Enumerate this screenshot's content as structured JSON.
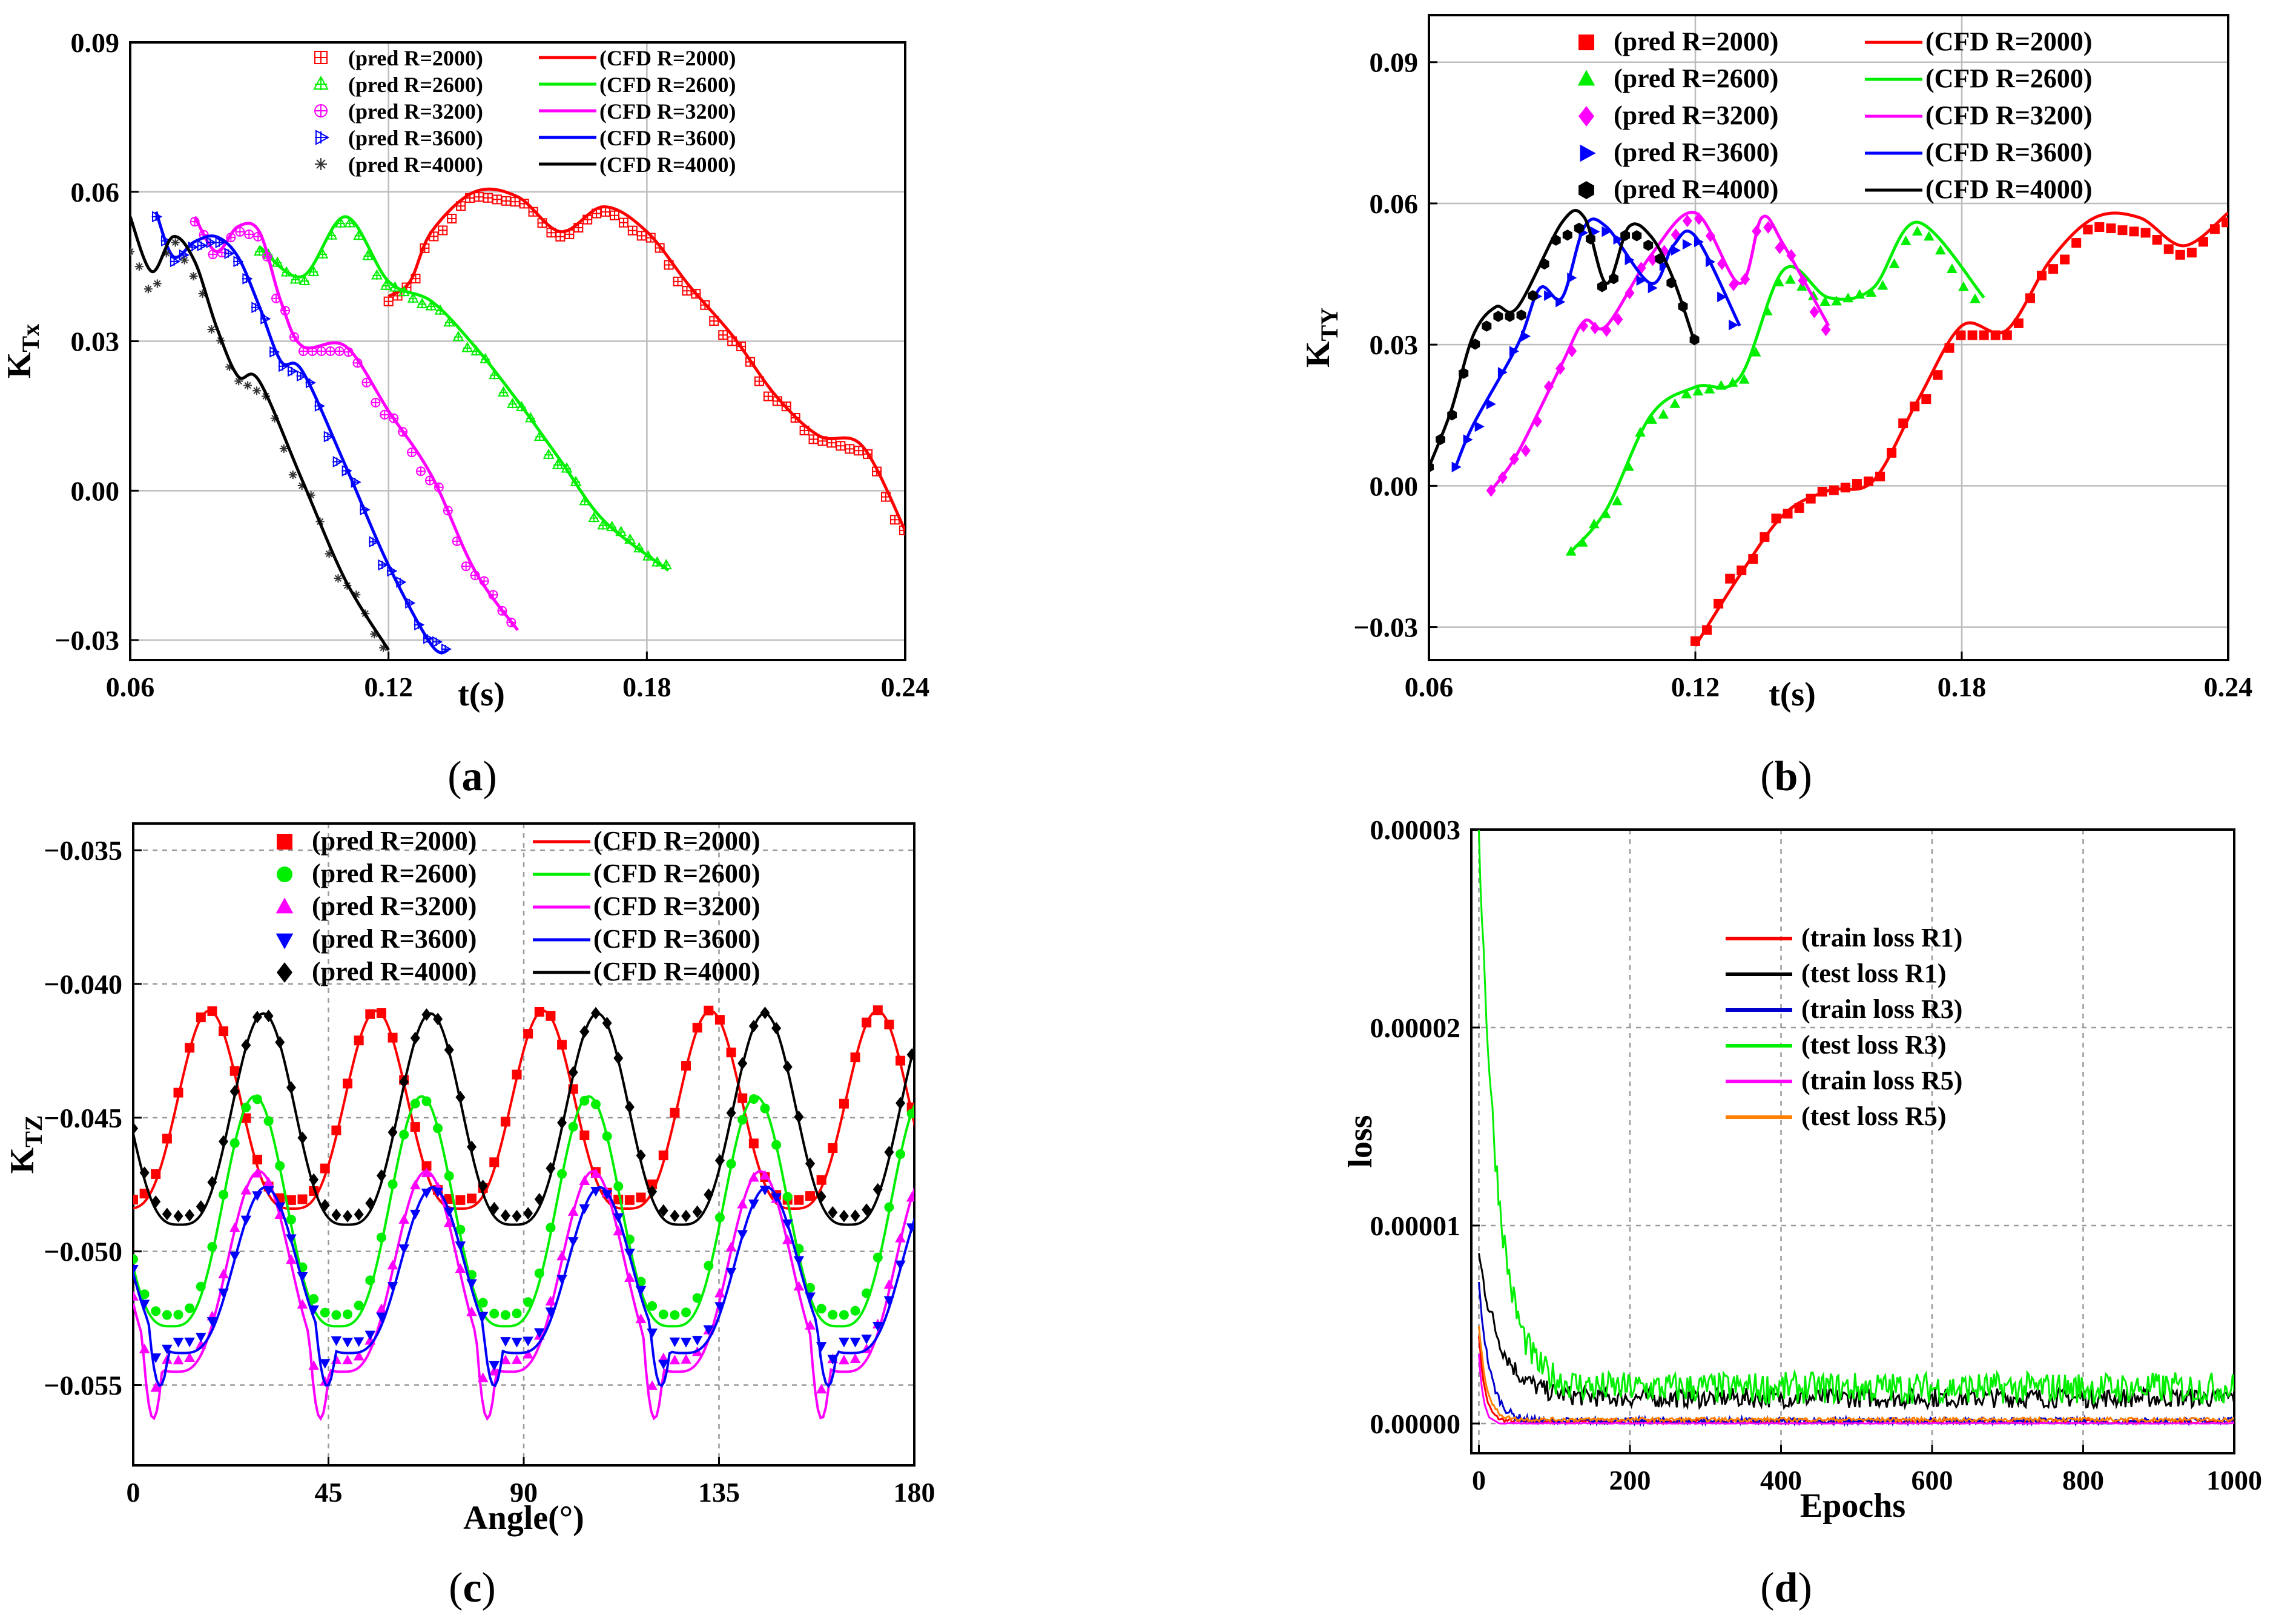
{
  "figure_panels": [
    "a",
    "b",
    "c",
    "d"
  ],
  "chart_data": [
    {
      "panel": "a",
      "type": "line",
      "xlabel": "t(s)",
      "ylabel": "K",
      "ylabel_sub": "Tx",
      "xlim": [
        0.06,
        0.24
      ],
      "ylim": [
        -0.034,
        0.09
      ],
      "xticks": [
        "0.06",
        "0.12",
        "0.18",
        "0.24"
      ],
      "yticks": [
        "−0.03",
        "0.00",
        "0.03",
        "0.06",
        "0.09"
      ],
      "xtick_values": [
        0.06,
        0.12,
        0.18,
        0.24
      ],
      "ytick_values": [
        -0.03,
        0.0,
        0.03,
        0.06,
        0.09
      ],
      "grid": true,
      "legend_position": "top-center",
      "series": [
        {
          "name": "(pred R=2000)",
          "kind": "pred",
          "color": "#ff0000",
          "marker": "square-plus",
          "x": [
            0.12,
            0.125,
            0.13,
            0.14,
            0.15,
            0.16,
            0.17,
            0.18,
            0.19,
            0.2,
            0.21,
            0.22,
            0.23,
            0.24
          ],
          "y": [
            0.038,
            0.041,
            0.051,
            0.059,
            0.058,
            0.051,
            0.056,
            0.051,
            0.04,
            0.03,
            0.018,
            0.01,
            0.008,
            -0.008
          ]
        },
        {
          "name": "(CFD  R=2000)",
          "kind": "cfd",
          "color": "#ff0000",
          "x": [
            0.12,
            0.125,
            0.13,
            0.14,
            0.15,
            0.16,
            0.17,
            0.18,
            0.19,
            0.2,
            0.21,
            0.22,
            0.23,
            0.24
          ],
          "y": [
            0.039,
            0.042,
            0.052,
            0.06,
            0.059,
            0.052,
            0.057,
            0.052,
            0.041,
            0.031,
            0.019,
            0.011,
            0.009,
            -0.008
          ]
        },
        {
          "name": "(pred R=2600)",
          "kind": "pred",
          "color": "#00ee00",
          "marker": "triangle-plus",
          "x": [
            0.09,
            0.1,
            0.11,
            0.12,
            0.13,
            0.14,
            0.15,
            0.16,
            0.17,
            0.185
          ],
          "y": [
            0.048,
            0.042,
            0.054,
            0.041,
            0.037,
            0.028,
            0.017,
            0.005,
            -0.007,
            -0.015
          ]
        },
        {
          "name": "(CFD  R=2600)",
          "kind": "cfd",
          "color": "#00ee00",
          "x": [
            0.09,
            0.1,
            0.11,
            0.12,
            0.13,
            0.14,
            0.15,
            0.16,
            0.17,
            0.185
          ],
          "y": [
            0.049,
            0.043,
            0.055,
            0.042,
            0.038,
            0.029,
            0.018,
            0.006,
            -0.006,
            -0.016
          ]
        },
        {
          "name": "(pred R=3200)",
          "kind": "pred",
          "color": "#ff00ff",
          "marker": "circle-plus",
          "x": [
            0.075,
            0.08,
            0.085,
            0.09,
            0.095,
            0.1,
            0.11,
            0.12,
            0.13,
            0.14,
            0.15
          ],
          "y": [
            0.054,
            0.047,
            0.052,
            0.051,
            0.037,
            0.028,
            0.028,
            0.015,
            0.002,
            -0.017,
            -0.027
          ]
        },
        {
          "name": "(CFD  R=3200)",
          "kind": "cfd",
          "color": "#ff00ff",
          "x": [
            0.075,
            0.08,
            0.085,
            0.09,
            0.095,
            0.1,
            0.11,
            0.12,
            0.13,
            0.14,
            0.15
          ],
          "y": [
            0.055,
            0.048,
            0.053,
            0.052,
            0.038,
            0.029,
            0.029,
            0.016,
            0.003,
            -0.016,
            -0.028
          ]
        },
        {
          "name": "(pred R=3600)",
          "kind": "pred",
          "color": "#0000ff",
          "marker": "triangle-right-plus",
          "x": [
            0.066,
            0.07,
            0.075,
            0.08,
            0.085,
            0.09,
            0.095,
            0.1,
            0.11,
            0.12,
            0.13,
            0.134
          ],
          "y": [
            0.055,
            0.046,
            0.049,
            0.05,
            0.046,
            0.036,
            0.025,
            0.023,
            0.004,
            -0.016,
            -0.03,
            -0.032
          ]
        },
        {
          "name": "(CFD  R=3600)",
          "kind": "cfd",
          "color": "#0000ff",
          "x": [
            0.066,
            0.07,
            0.075,
            0.08,
            0.085,
            0.09,
            0.095,
            0.1,
            0.11,
            0.12,
            0.13,
            0.134
          ],
          "y": [
            0.056,
            0.047,
            0.05,
            0.051,
            0.047,
            0.037,
            0.026,
            0.024,
            0.005,
            -0.015,
            -0.031,
            -0.032
          ]
        },
        {
          "name": "(pred R=4000)",
          "kind": "pred",
          "color": "#333333",
          "marker": "star",
          "x": [
            0.06,
            0.065,
            0.07,
            0.075,
            0.08,
            0.085,
            0.09,
            0.1,
            0.11,
            0.12
          ],
          "y": [
            0.048,
            0.04,
            0.05,
            0.043,
            0.031,
            0.022,
            0.02,
            0.001,
            -0.019,
            -0.032
          ]
        },
        {
          "name": "(CFD  R=4000)",
          "kind": "cfd",
          "color": "#000000",
          "x": [
            0.06,
            0.065,
            0.07,
            0.075,
            0.08,
            0.085,
            0.09,
            0.1,
            0.11,
            0.12
          ],
          "y": [
            0.055,
            0.044,
            0.051,
            0.046,
            0.033,
            0.023,
            0.022,
            0.002,
            -0.018,
            -0.032
          ]
        }
      ]
    },
    {
      "panel": "b",
      "type": "line",
      "xlabel": "t(s)",
      "ylabel": "K",
      "ylabel_sub": "TY",
      "xlim": [
        0.06,
        0.24
      ],
      "ylim": [
        -0.037,
        0.1
      ],
      "xticks": [
        "0.06",
        "0.12",
        "0.18",
        "0.24"
      ],
      "yticks": [
        "−0.03",
        "0.00",
        "0.03",
        "0.06",
        "0.09"
      ],
      "xtick_values": [
        0.06,
        0.12,
        0.18,
        0.24
      ],
      "ytick_values": [
        -0.03,
        0.0,
        0.03,
        0.06,
        0.09
      ],
      "grid": true,
      "legend_position": "top-center",
      "series": [
        {
          "name": "(pred R=2000)",
          "kind": "pred",
          "color": "#ff0000",
          "marker": "square",
          "x": [
            0.12,
            0.13,
            0.14,
            0.15,
            0.16,
            0.17,
            0.18,
            0.19,
            0.2,
            0.21,
            0.22,
            0.23,
            0.24
          ],
          "y": [
            -0.033,
            -0.018,
            -0.006,
            -0.001,
            0.001,
            0.017,
            0.032,
            0.032,
            0.046,
            0.055,
            0.054,
            0.049,
            0.056
          ]
        },
        {
          "name": "(CFD  R=2000)",
          "kind": "cfd",
          "color": "#ff0000",
          "x": [
            0.12,
            0.13,
            0.14,
            0.15,
            0.16,
            0.17,
            0.18,
            0.19,
            0.2,
            0.21,
            0.22,
            0.23,
            0.24
          ],
          "y": [
            -0.034,
            -0.019,
            -0.006,
            -0.001,
            0.001,
            0.018,
            0.034,
            0.033,
            0.048,
            0.057,
            0.057,
            0.051,
            0.058
          ]
        },
        {
          "name": "(pred R=2600)",
          "kind": "pred",
          "color": "#00ee00",
          "marker": "triangle",
          "x": [
            0.092,
            0.1,
            0.11,
            0.12,
            0.13,
            0.14,
            0.15,
            0.16,
            0.17,
            0.185
          ],
          "y": [
            -0.014,
            -0.006,
            0.014,
            0.02,
            0.022,
            0.044,
            0.039,
            0.041,
            0.054,
            0.039
          ]
        },
        {
          "name": "(CFD  R=2600)",
          "kind": "cfd",
          "color": "#00ee00",
          "x": [
            0.092,
            0.1,
            0.11,
            0.12,
            0.13,
            0.14,
            0.15,
            0.16,
            0.17,
            0.185
          ],
          "y": [
            -0.014,
            -0.005,
            0.015,
            0.021,
            0.023,
            0.046,
            0.04,
            0.042,
            0.056,
            0.04
          ]
        },
        {
          "name": "(pred R=3200)",
          "kind": "pred",
          "color": "#ff00ff",
          "marker": "diamond",
          "x": [
            0.074,
            0.08,
            0.09,
            0.095,
            0.1,
            0.11,
            0.12,
            0.13,
            0.135,
            0.14,
            0.15
          ],
          "y": [
            -0.001,
            0.006,
            0.025,
            0.034,
            0.033,
            0.048,
            0.057,
            0.042,
            0.056,
            0.05,
            0.033
          ]
        },
        {
          "name": "(CFD  R=3200)",
          "kind": "cfd",
          "color": "#ff00ff",
          "x": [
            0.074,
            0.08,
            0.09,
            0.095,
            0.1,
            0.11,
            0.12,
            0.13,
            0.135,
            0.14,
            0.15
          ],
          "y": [
            -0.001,
            0.007,
            0.026,
            0.035,
            0.034,
            0.049,
            0.058,
            0.043,
            0.057,
            0.051,
            0.034
          ]
        },
        {
          "name": "(pred R=3600)",
          "kind": "pred",
          "color": "#0000ff",
          "marker": "triangle-right",
          "x": [
            0.066,
            0.07,
            0.08,
            0.085,
            0.09,
            0.095,
            0.1,
            0.11,
            0.115,
            0.12,
            0.13
          ],
          "y": [
            0.004,
            0.012,
            0.029,
            0.041,
            0.039,
            0.054,
            0.054,
            0.042,
            0.05,
            0.052,
            0.033
          ]
        },
        {
          "name": "(CFD  R=3600)",
          "kind": "cfd",
          "color": "#0000ff",
          "x": [
            0.066,
            0.07,
            0.08,
            0.085,
            0.09,
            0.095,
            0.1,
            0.11,
            0.115,
            0.12,
            0.13
          ],
          "y": [
            0.004,
            0.013,
            0.03,
            0.042,
            0.04,
            0.055,
            0.055,
            0.043,
            0.051,
            0.053,
            0.034
          ]
        },
        {
          "name": "(pred R=4000)",
          "kind": "pred",
          "color": "#000000",
          "marker": "hexagon",
          "x": [
            0.06,
            0.065,
            0.07,
            0.075,
            0.08,
            0.09,
            0.095,
            0.1,
            0.105,
            0.11,
            0.115,
            0.12
          ],
          "y": [
            0.004,
            0.015,
            0.03,
            0.036,
            0.036,
            0.053,
            0.055,
            0.041,
            0.054,
            0.051,
            0.043,
            0.031
          ]
        },
        {
          "name": "(CFD  R=4000)",
          "kind": "cfd",
          "color": "#000000",
          "x": [
            0.06,
            0.065,
            0.07,
            0.075,
            0.08,
            0.09,
            0.095,
            0.1,
            0.105,
            0.11,
            0.115,
            0.12
          ],
          "y": [
            0.004,
            0.016,
            0.032,
            0.038,
            0.038,
            0.056,
            0.057,
            0.043,
            0.055,
            0.053,
            0.044,
            0.03
          ]
        }
      ]
    },
    {
      "panel": "c",
      "type": "line",
      "xlabel": "Angle(°)",
      "ylabel": "K",
      "ylabel_sub": "TZ",
      "xlim": [
        0,
        180
      ],
      "ylim": [
        -0.058,
        -0.034
      ],
      "xticks": [
        "0",
        "45",
        "90",
        "135",
        "180"
      ],
      "yticks": [
        "−0.055",
        "−0.050",
        "−0.045",
        "−0.040",
        "−0.035"
      ],
      "xtick_values": [
        0,
        45,
        90,
        135,
        180
      ],
      "ytick_values": [
        -0.055,
        -0.05,
        -0.045,
        -0.04,
        -0.035
      ],
      "grid": true,
      "legend_position": "top-center",
      "series": [
        {
          "name": "(pred R=2000)",
          "kind": "pred",
          "color": "#ff0000",
          "marker": "square",
          "periodic": {
            "period": 38.5,
            "phase": 17.5,
            "peak": -0.0411,
            "trough": -0.0482,
            "notch": 0
          }
        },
        {
          "name": "(CFD  R=2000)",
          "kind": "cfd",
          "color": "#ff0000",
          "periodic": {
            "period": 38.5,
            "phase": 17.5,
            "peak": -0.041,
            "trough": -0.0484,
            "notch": 0
          }
        },
        {
          "name": "(pred R=2600)",
          "kind": "pred",
          "color": "#00ee00",
          "marker": "circle",
          "periodic": {
            "period": 38.5,
            "phase": 28.0,
            "peak": -0.0444,
            "trough": -0.0525,
            "notch": 0
          }
        },
        {
          "name": "(CFD  R=2600)",
          "kind": "cfd",
          "color": "#00ee00",
          "periodic": {
            "period": 38.5,
            "phase": 28.0,
            "peak": -0.0442,
            "trough": -0.0528,
            "notch": 0
          }
        },
        {
          "name": "(pred R=3200)",
          "kind": "pred",
          "color": "#ff00ff",
          "marker": "triangle",
          "periodic": {
            "period": 38.5,
            "phase": 29.0,
            "peak": -0.0472,
            "trough": -0.0542,
            "notch": 0.0015
          }
        },
        {
          "name": "(CFD  R=3200)",
          "kind": "cfd",
          "color": "#ff00ff",
          "periodic": {
            "period": 38.5,
            "phase": 29.0,
            "peak": -0.047,
            "trough": -0.0545,
            "notch": 0.0022
          }
        },
        {
          "name": "(pred R=3600)",
          "kind": "pred",
          "color": "#0000ff",
          "marker": "triangle-down",
          "periodic": {
            "period": 38.5,
            "phase": 30.5,
            "peak": -0.0478,
            "trough": -0.0535,
            "notch": 0.0012
          }
        },
        {
          "name": "(CFD  R=3600)",
          "kind": "cfd",
          "color": "#0000ff",
          "periodic": {
            "period": 38.5,
            "phase": 30.5,
            "peak": -0.0476,
            "trough": -0.0538,
            "notch": 0.0016
          }
        },
        {
          "name": "(pred R=4000)",
          "kind": "pred",
          "color": "#000000",
          "marker": "diamond",
          "periodic": {
            "period": 38.5,
            "phase": 30.0,
            "peak": -0.0412,
            "trough": -0.0488,
            "notch": 0
          }
        },
        {
          "name": "(CFD  R=4000)",
          "kind": "cfd",
          "color": "#000000",
          "periodic": {
            "period": 38.5,
            "phase": 30.0,
            "peak": -0.0411,
            "trough": -0.049,
            "notch": 0
          }
        }
      ]
    },
    {
      "panel": "d",
      "type": "line",
      "xlabel": "Epochs",
      "ylabel": "loss",
      "xlim": [
        -10,
        1000
      ],
      "ylim": [
        -1.5e-06,
        3e-05
      ],
      "xticks": [
        "0",
        "200",
        "400",
        "600",
        "800",
        "1000"
      ],
      "yticks": [
        "0.00000",
        "0.00001",
        "0.00002",
        "0.00003"
      ],
      "xtick_values": [
        0,
        200,
        400,
        600,
        800,
        1000
      ],
      "ytick_values": [
        0,
        1e-05,
        2e-05,
        3e-05
      ],
      "grid": true,
      "legend_position": "center",
      "series": [
        {
          "name": "(train loss  R1)",
          "color": "#ff0000",
          "curve": {
            "start": 4.5e-06,
            "end": 1e-07,
            "tau": 8,
            "noise": 1e-07
          }
        },
        {
          "name": "(test  loss  R1)",
          "color": "#000000",
          "curve": {
            "start": 8.5e-06,
            "end": 1.3e-06,
            "tau": 30,
            "noise": 5e-07
          }
        },
        {
          "name": "(train loss  R3)",
          "color": "#0000cc",
          "curve": {
            "start": 7e-06,
            "end": 1e-07,
            "tau": 15,
            "noise": 2e-07
          }
        },
        {
          "name": "(test  loss  R3)",
          "color": "#00ee00",
          "curve": {
            "start": 3e-05,
            "end": 1.8e-06,
            "tau": 25,
            "noise": 8e-07
          }
        },
        {
          "name": "(train loss  R5)",
          "color": "#ff00ff",
          "curve": {
            "start": 3.5e-06,
            "end": 0.0,
            "tau": 6,
            "noise": 5e-08
          }
        },
        {
          "name": "(test  loss  R5)",
          "color": "#ff8000",
          "curve": {
            "start": 5e-06,
            "end": 2e-07,
            "tau": 10,
            "noise": 1e-07
          }
        }
      ]
    }
  ]
}
